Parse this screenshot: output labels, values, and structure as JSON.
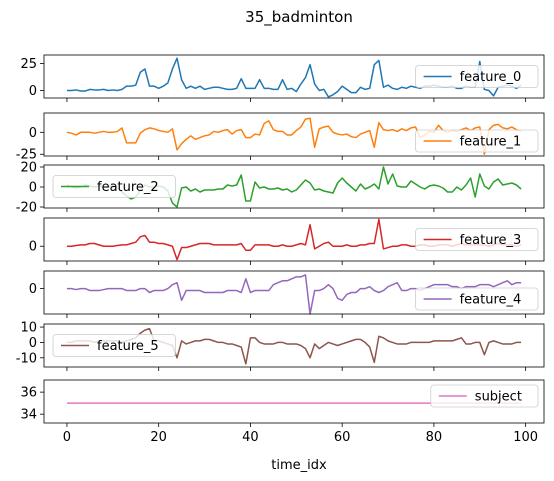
{
  "chart_data": {
    "type": "line",
    "title": "35_badminton",
    "xlabel": "time_idx",
    "xlim": [
      -5,
      104
    ],
    "xticks": [
      0,
      20,
      40,
      60,
      80,
      100
    ],
    "grid": false,
    "panels": [
      {
        "name": "feature_0",
        "color": "#1f77b4",
        "legend_loc": "right",
        "ylim": [
          -7,
          33
        ],
        "yticks": [
          0,
          25
        ],
        "values": [
          0,
          0,
          0.5,
          -0.5,
          -0.5,
          1,
          0.5,
          0.5,
          1,
          0,
          0.5,
          0,
          1,
          4,
          4,
          5,
          17,
          20,
          4,
          4,
          2,
          4,
          7,
          20,
          30,
          10,
          2,
          4,
          2,
          4,
          1,
          2,
          3,
          3,
          2,
          1,
          1,
          2,
          11,
          2,
          2,
          2,
          10,
          2,
          2,
          1,
          1,
          10,
          1,
          2,
          -1,
          6,
          12,
          24,
          6,
          0,
          1,
          -6,
          -4,
          -1,
          4,
          1,
          -2,
          -2,
          3,
          1,
          2,
          24,
          28,
          3,
          5,
          2,
          1,
          3,
          2,
          4,
          3,
          2,
          4,
          4,
          5,
          4,
          3,
          3,
          4,
          2,
          2,
          4,
          3,
          3,
          27,
          1,
          0,
          -5,
          3,
          4,
          5,
          4,
          2,
          5
        ]
      },
      {
        "name": "feature_1",
        "color": "#ff7f0e",
        "legend_loc": "lower right",
        "ylim": [
          -27,
          22
        ],
        "yticks": [
          -25,
          0
        ],
        "values": [
          0,
          -1,
          -3,
          0,
          0,
          0,
          -1,
          0,
          1,
          0,
          0,
          1,
          5,
          -12,
          -12,
          -12,
          -1,
          3,
          5,
          4,
          2,
          1,
          0,
          4,
          -20,
          -13,
          -8,
          -4,
          -8,
          -6,
          -4,
          -3,
          1,
          0,
          2,
          3,
          -2,
          2,
          3,
          -6,
          -6,
          -2,
          -3,
          10,
          13,
          3,
          1,
          1,
          -3,
          -3,
          2,
          6,
          15,
          16,
          -17,
          4,
          6,
          7,
          0,
          -2,
          -3,
          -2,
          -5,
          -6,
          -2,
          0,
          2,
          -17,
          11,
          3,
          2,
          3,
          1,
          4,
          2,
          5,
          6,
          -6,
          -3,
          1,
          0,
          8,
          2,
          0,
          2,
          1,
          3,
          5,
          2,
          5,
          6,
          -25,
          3,
          8,
          9,
          5,
          4,
          6,
          3,
          1
        ]
      },
      {
        "name": "feature_2",
        "color": "#2ca02c",
        "legend_loc": "left",
        "ylim": [
          -21,
          22
        ],
        "yticks": [
          -20,
          0,
          20
        ],
        "values": [
          2,
          0,
          -1,
          0,
          2,
          1,
          0,
          1,
          0,
          0,
          2,
          0,
          -5,
          -9,
          -12,
          -10,
          -3,
          2,
          0,
          0,
          1,
          0,
          -4,
          -16,
          -20,
          -1,
          0,
          -4,
          -2,
          -5,
          -3,
          -3,
          -3,
          -2,
          -2,
          2,
          1,
          2,
          12,
          -14,
          -14,
          5,
          -1,
          0,
          -2,
          -2,
          -1,
          -3,
          -2,
          -5,
          -3,
          2,
          7,
          4,
          -3,
          -2,
          -4,
          -5,
          -6,
          4,
          9,
          4,
          0,
          -4,
          3,
          -2,
          0,
          3,
          -2,
          20,
          3,
          13,
          1,
          0,
          0,
          6,
          3,
          0,
          -2,
          1,
          2,
          1,
          -1,
          -5,
          -5,
          0,
          -3,
          2,
          9,
          -10,
          13,
          1,
          -2,
          5,
          8,
          2,
          3,
          4,
          2,
          -2
        ]
      },
      {
        "name": "feature_3",
        "color": "#d62728",
        "legend_loc": "right",
        "ylim": [
          -11,
          21
        ],
        "yticks": [
          0
        ],
        "values": [
          0,
          0,
          0.5,
          1,
          1,
          2,
          2,
          1,
          0,
          0,
          0,
          0.5,
          1,
          1,
          2,
          3,
          7,
          8,
          3,
          3,
          2,
          2,
          1,
          0,
          -10,
          -1,
          -1,
          0,
          1,
          2,
          2,
          2,
          1,
          1,
          1,
          1,
          1,
          1,
          2,
          -3,
          -3,
          1,
          1,
          1,
          1,
          0,
          0,
          1,
          0,
          0,
          1,
          2,
          1,
          16,
          -2,
          0,
          2,
          3,
          0,
          0,
          0,
          1,
          0,
          0,
          1,
          1,
          2,
          2,
          20,
          -2,
          -1,
          0,
          0,
          1,
          1,
          0,
          0,
          1,
          1,
          0,
          0,
          1,
          1,
          1,
          0,
          1,
          2,
          1,
          1,
          1,
          1,
          1,
          0,
          1,
          2,
          1,
          1,
          1,
          0,
          1
        ]
      },
      {
        "name": "feature_4",
        "color": "#9467bd",
        "legend_loc": "lower right",
        "ylim": [
          -13,
          9
        ],
        "yticks": [
          0
        ],
        "values": [
          0,
          0,
          -0.5,
          0,
          0,
          -1,
          -1,
          -1,
          -0.5,
          0,
          0,
          0,
          0,
          -1,
          -1,
          -1,
          0,
          0,
          -2,
          -1,
          -1,
          -1,
          0,
          2,
          3,
          -6,
          -1,
          -1,
          -1,
          -1,
          -2,
          -2,
          -2,
          -2,
          -2,
          -1,
          -1,
          -1,
          -2,
          5,
          -2,
          -1,
          -1,
          -1,
          -1,
          2,
          3,
          4,
          4,
          5,
          6,
          6,
          7,
          -13,
          -1,
          -1,
          0,
          2,
          0,
          -5,
          -6,
          -3,
          -2,
          -2,
          0,
          0,
          1,
          -1,
          -2,
          -1,
          1,
          2,
          3,
          -1,
          -1,
          0,
          0,
          -1,
          0,
          1,
          2,
          2,
          2,
          2,
          1,
          1,
          0,
          1,
          1,
          1,
          2,
          2,
          2,
          1,
          2,
          3,
          4,
          2,
          3,
          3
        ]
      },
      {
        "name": "feature_5",
        "color": "#8c564b",
        "legend_loc": "left",
        "ylim": [
          -16,
          12
        ],
        "yticks": [
          -10,
          0,
          10
        ],
        "values": [
          0,
          0,
          1,
          1,
          1,
          1,
          0,
          1,
          1,
          1,
          1,
          1,
          0,
          1,
          2,
          3,
          6,
          8,
          9,
          1,
          1,
          0,
          -1,
          -2,
          -10,
          1,
          -1,
          0,
          1,
          1,
          2,
          2,
          1,
          0,
          0,
          -1,
          -1,
          -2,
          -3,
          -14,
          3,
          3,
          0,
          -1,
          -1,
          -1,
          0,
          0,
          -1,
          -1,
          -1,
          -2,
          -4,
          -10,
          -1,
          -4,
          -2,
          0,
          -1,
          -2,
          -1,
          0,
          1,
          2,
          2,
          0,
          -3,
          -13,
          4,
          3,
          1,
          0,
          -1,
          -1,
          -1,
          0,
          0,
          0,
          0,
          0,
          1,
          1,
          1,
          1,
          1,
          2,
          3,
          -1,
          -1,
          0,
          0,
          -8,
          0,
          1,
          0,
          -1,
          -1,
          -1,
          0,
          0
        ]
      },
      {
        "name": "subject",
        "color": "#e377c2",
        "legend_loc": "upper right",
        "ylim": [
          33.2,
          37.1
        ],
        "yticks": [
          34,
          36
        ],
        "values": [
          35,
          35,
          35,
          35,
          35,
          35,
          35,
          35,
          35,
          35,
          35,
          35,
          35,
          35,
          35,
          35,
          35,
          35,
          35,
          35,
          35,
          35,
          35,
          35,
          35,
          35,
          35,
          35,
          35,
          35,
          35,
          35,
          35,
          35,
          35,
          35,
          35,
          35,
          35,
          35,
          35,
          35,
          35,
          35,
          35,
          35,
          35,
          35,
          35,
          35,
          35,
          35,
          35,
          35,
          35,
          35,
          35,
          35,
          35,
          35,
          35,
          35,
          35,
          35,
          35,
          35,
          35,
          35,
          35,
          35,
          35,
          35,
          35,
          35,
          35,
          35,
          35,
          35,
          35,
          35,
          35,
          35,
          35,
          35,
          35,
          35,
          35,
          35,
          35,
          35,
          35,
          35,
          35,
          35,
          35,
          35,
          35,
          35,
          35,
          35
        ]
      }
    ]
  }
}
